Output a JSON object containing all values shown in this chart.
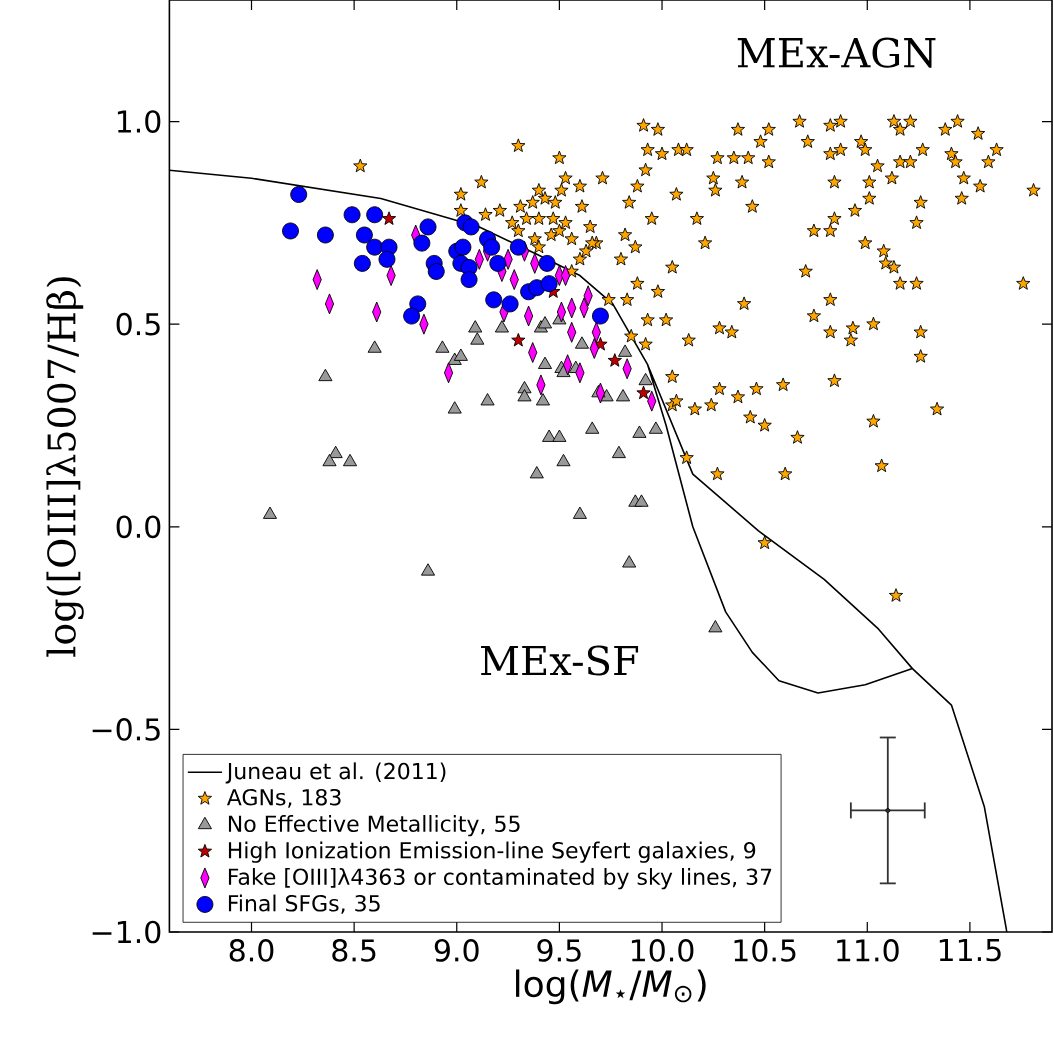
{
  "chart_data": {
    "type": "scatter",
    "xlabel": "log(*M*$_{⋆}$/*M*$_{⊙}$)",
    "ylabel": "log([OIII]λ5007/Hβ)",
    "annotations": [
      "MEx-AGN",
      "MEx-SF"
    ],
    "xlim": [
      7.6,
      11.9
    ],
    "ylim": [
      -1.0,
      1.3
    ],
    "xticks": [
      {
        "value": 8.0,
        "label": "8.0"
      },
      {
        "value": 8.5,
        "label": "8.5"
      },
      {
        "value": 9.0,
        "label": "9.0"
      },
      {
        "value": 9.5,
        "label": "9.5"
      },
      {
        "value": 10.0,
        "label": "10.0"
      },
      {
        "value": 10.5,
        "label": "10.5"
      },
      {
        "value": 11.0,
        "label": "11.0"
      },
      {
        "value": 11.5,
        "label": "11.5"
      }
    ],
    "yticks": [
      {
        "value": -1.0,
        "label": "−1.0"
      },
      {
        "value": -0.5,
        "label": "−0.5"
      },
      {
        "value": 0.0,
        "label": "0.0"
      },
      {
        "value": 0.5,
        "label": "0.5"
      },
      {
        "value": 1.0,
        "label": "1.0"
      }
    ],
    "legend": "bottom left",
    "series": [
      {
        "name": "Juneau et al. (2011)",
        "type": "line",
        "color": "#000000",
        "marker": "none",
        "x": [
          7.6,
          8.0,
          8.63,
          9.11,
          9.4,
          9.6,
          9.76,
          9.93,
          10.15,
          10.47,
          10.79,
          11.05,
          11.22,
          11.41,
          11.57,
          11.68,
          null,
          9.93,
          10.02,
          10.15,
          10.31,
          10.44,
          10.57,
          10.76,
          10.99,
          11.22
        ],
        "values": [
          0.88,
          0.86,
          0.81,
          0.74,
          0.67,
          0.62,
          0.55,
          0.4,
          0.13,
          -0.01,
          -0.13,
          -0.25,
          -0.35,
          -0.44,
          -0.69,
          -1.0,
          null,
          0.4,
          0.25,
          0.0,
          -0.21,
          -0.31,
          -0.38,
          -0.41,
          -0.39,
          -0.35
        ]
      },
      {
        "name": "AGNs, 183",
        "type": "scatter",
        "color": "#ffa500",
        "marker": "star",
        "x": [
          8.53,
          9.3,
          9.5,
          9.12,
          9.02,
          9.02,
          9.14,
          9.21,
          9.4,
          9.53,
          9.6,
          9.61,
          9.56,
          9.63,
          9.71,
          9.31,
          9.37,
          9.43,
          9.48,
          9.51,
          9.27,
          9.34,
          9.4,
          9.47,
          9.53,
          9.3,
          9.38,
          9.46,
          9.56,
          9.65,
          9.68,
          9.4,
          9.6,
          9.74,
          9.83,
          9.8,
          9.82,
          9.87,
          9.84,
          9.95,
          9.88,
          9.92,
          9.91,
          9.93,
          10.05,
          9.88,
          9.98,
          9.93,
          10.02,
          9.85,
          9.92,
          10.05,
          10.05,
          9.5,
          9.66,
          9.98,
          10.0,
          10.08,
          10.12,
          10.37,
          10.48,
          10.52,
          10.27,
          10.35,
          10.42,
          10.52,
          10.25,
          10.26,
          10.39,
          10.44,
          10.07,
          10.17,
          10.21,
          10.4,
          10.13,
          10.28,
          10.34,
          10.07,
          10.16,
          10.24,
          10.28,
          10.37,
          10.46,
          10.59,
          10.43,
          10.5,
          10.66,
          10.12,
          10.27,
          10.6,
          10.67,
          10.71,
          10.82,
          10.87,
          10.82,
          10.87,
          10.97,
          10.99,
          11.13,
          11.16,
          11.21,
          11.27,
          11.38,
          11.44,
          11.54,
          11.41,
          11.43,
          11.59,
          11.63,
          11.16,
          11.21,
          11.05,
          10.84,
          11.01,
          11.12,
          11.47,
          11.55,
          11.81,
          11.01,
          11.26,
          11.46,
          10.94,
          10.84,
          11.24,
          10.74,
          10.82,
          10.99,
          11.08,
          11.09,
          11.13,
          11.16,
          11.24,
          11.76,
          10.7,
          10.82,
          10.74,
          10.82,
          10.93,
          10.92,
          11.03,
          11.26,
          11.26,
          10.84,
          11.03,
          11.34,
          11.07,
          10.5,
          11.14
        ],
        "values": [
          0.89,
          0.94,
          0.91,
          0.85,
          0.82,
          0.78,
          0.77,
          0.78,
          0.83,
          0.86,
          0.84,
          0.79,
          0.63,
          0.68,
          0.86,
          0.79,
          0.8,
          0.81,
          0.8,
          0.83,
          0.75,
          0.76,
          0.76,
          0.76,
          0.75,
          0.73,
          0.71,
          0.72,
          0.71,
          0.74,
          0.7,
          0.69,
          0.66,
          0.56,
          0.56,
          0.66,
          0.72,
          0.69,
          0.8,
          0.76,
          0.84,
          0.88,
          0.99,
          0.93,
          0.64,
          0.6,
          0.58,
          0.51,
          0.51,
          0.47,
          0.45,
          0.37,
          0.3,
          0.73,
          0.7,
          0.98,
          0.92,
          0.93,
          0.93,
          0.98,
          0.95,
          0.98,
          0.91,
          0.91,
          0.91,
          0.9,
          0.86,
          0.83,
          0.85,
          0.79,
          0.82,
          0.76,
          0.7,
          0.55,
          0.46,
          0.49,
          0.48,
          0.31,
          0.29,
          0.3,
          0.34,
          0.32,
          0.34,
          0.35,
          0.27,
          0.25,
          0.22,
          0.17,
          0.13,
          0.13,
          1.0,
          0.95,
          0.99,
          1.0,
          0.92,
          0.93,
          0.95,
          0.93,
          1.0,
          0.98,
          1.0,
          0.93,
          0.98,
          1.0,
          0.97,
          0.92,
          0.9,
          0.9,
          0.93,
          0.9,
          0.9,
          0.89,
          0.85,
          0.85,
          0.86,
          0.86,
          0.84,
          0.83,
          0.81,
          0.8,
          0.81,
          0.78,
          0.76,
          0.75,
          0.73,
          0.73,
          0.7,
          0.68,
          0.65,
          0.64,
          0.6,
          0.6,
          0.6,
          0.63,
          0.56,
          0.52,
          0.48,
          0.49,
          0.46,
          0.5,
          0.48,
          0.42,
          0.36,
          0.26,
          0.29,
          0.15,
          -0.04,
          -0.17
        ]
      },
      {
        "name": "No Effective Metallicity, 55",
        "type": "scatter",
        "color": "#999999",
        "marker": "triangle",
        "x": [
          8.36,
          8.6,
          8.41,
          8.38,
          8.48,
          8.93,
          8.99,
          9.02,
          8.99,
          9.09,
          9.1,
          9.15,
          9.22,
          9.33,
          9.33,
          9.42,
          9.43,
          9.41,
          9.45,
          9.5,
          9.52,
          9.51,
          9.61,
          9.66,
          9.39,
          8.09,
          8.86,
          9.6,
          9.79,
          9.87,
          9.9,
          9.84,
          10.26,
          9.89,
          9.97,
          9.73,
          9.81,
          9.69,
          9.92,
          9.43,
          9.5,
          9.52,
          9.58,
          9.82
        ],
        "values": [
          0.37,
          0.44,
          0.18,
          0.16,
          0.16,
          0.44,
          0.41,
          0.42,
          0.29,
          0.49,
          0.46,
          0.31,
          0.49,
          0.34,
          0.32,
          0.31,
          0.4,
          0.49,
          0.22,
          0.22,
          0.16,
          0.39,
          0.45,
          0.24,
          0.13,
          0.03,
          -0.11,
          0.03,
          0.18,
          0.06,
          0.06,
          -0.09,
          -0.25,
          0.23,
          0.24,
          0.32,
          0.32,
          0.33,
          0.36,
          0.5,
          0.51,
          0.38,
          0.39,
          0.43
        ]
      },
      {
        "name": "High Ionization Emission-line Seyfert galaxies, 9",
        "type": "scatter",
        "color": "#c00000",
        "marker": "star",
        "x": [
          8.67,
          9.3,
          9.7,
          9.77,
          9.91,
          9.47
        ],
        "values": [
          0.76,
          0.46,
          0.45,
          0.41,
          0.33,
          0.58
        ]
      },
      {
        "name": "Fake [OIII]λ4363 or contaminated by sky lines, 37",
        "type": "scatter",
        "color": "#ff00ff",
        "marker": "diamond",
        "x": [
          8.32,
          8.38,
          8.61,
          8.68,
          8.8,
          8.84,
          8.96,
          9.11,
          9.15,
          9.25,
          9.22,
          9.28,
          9.33,
          9.38,
          9.35,
          9.37,
          9.41,
          9.5,
          9.53,
          9.51,
          9.56,
          9.56,
          9.54,
          9.6,
          9.62,
          9.64,
          9.68,
          9.67,
          9.83,
          9.7,
          9.95,
          9.23
        ],
        "values": [
          0.61,
          0.55,
          0.53,
          0.62,
          0.72,
          0.5,
          0.38,
          0.66,
          0.68,
          0.66,
          0.63,
          0.61,
          0.68,
          0.65,
          0.52,
          0.43,
          0.35,
          0.62,
          0.62,
          0.53,
          0.54,
          0.48,
          0.4,
          0.38,
          0.54,
          0.57,
          0.48,
          0.44,
          0.39,
          0.33,
          0.31,
          0.53
        ]
      },
      {
        "name": "Final SFGs, 35",
        "type": "scatter",
        "color": "#0000ff",
        "marker": "circle",
        "x": [
          8.19,
          8.23,
          8.36,
          8.49,
          8.55,
          8.54,
          8.6,
          8.6,
          8.67,
          8.66,
          8.83,
          8.86,
          8.89,
          8.9,
          8.81,
          8.78,
          9.0,
          9.03,
          9.02,
          9.06,
          9.06,
          9.04,
          9.07,
          9.15,
          9.17,
          9.2,
          9.3,
          9.18,
          9.26,
          9.35,
          9.39,
          9.44,
          9.45,
          9.7
        ],
        "values": [
          0.73,
          0.82,
          0.72,
          0.77,
          0.72,
          0.65,
          0.77,
          0.69,
          0.69,
          0.66,
          0.7,
          0.74,
          0.65,
          0.63,
          0.55,
          0.52,
          0.68,
          0.69,
          0.65,
          0.64,
          0.61,
          0.75,
          0.74,
          0.71,
          0.69,
          0.65,
          0.69,
          0.56,
          0.55,
          0.58,
          0.59,
          0.65,
          0.6,
          0.52
        ]
      },
      {
        "type": "scatter",
        "color": "#333333",
        "x": [
          11.1
        ],
        "values": [
          -0.7
        ],
        "errors": [
          0.18
        ],
        "xerrors": [
          0.18
        ]
      }
    ]
  }
}
